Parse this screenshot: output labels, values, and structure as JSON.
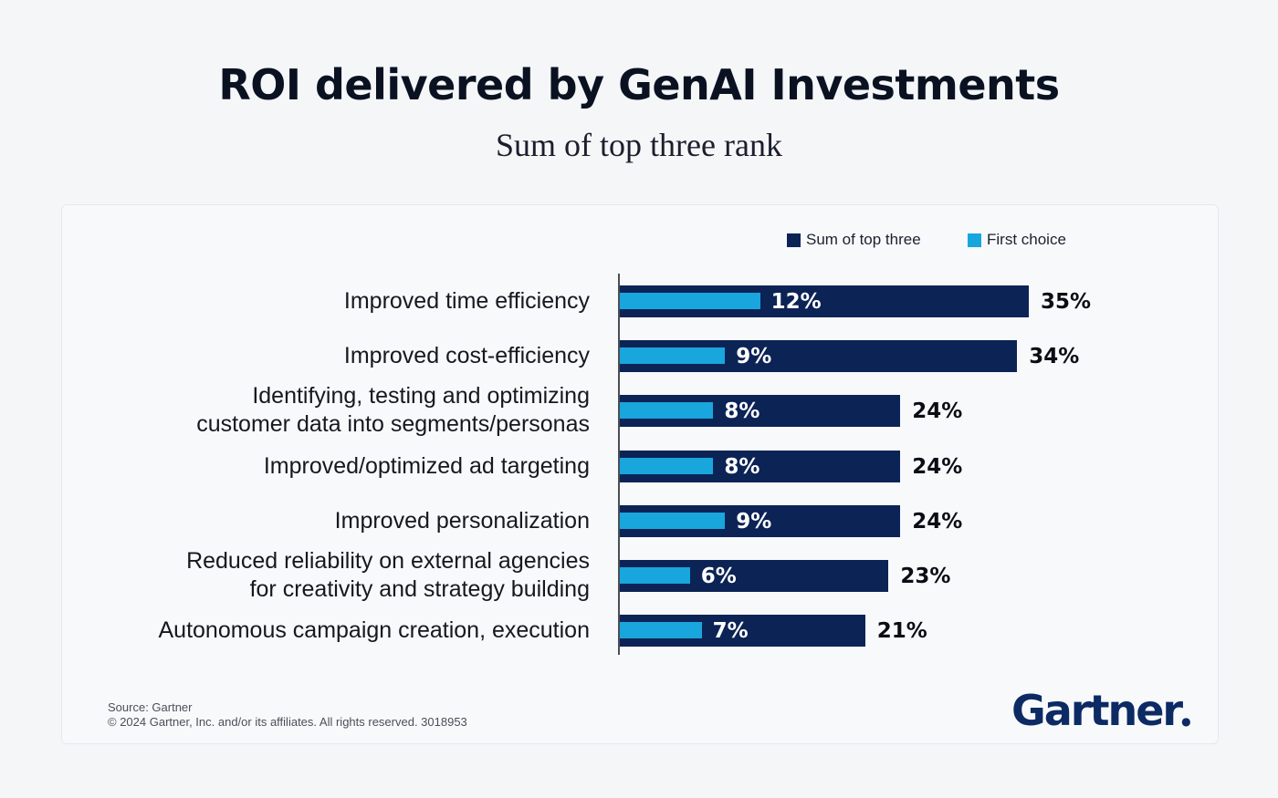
{
  "title": "ROI delivered by GenAI Investments",
  "subtitle": "Sum of top three rank",
  "legend": {
    "sum_label": "Sum of top three",
    "first_label": "First choice"
  },
  "colors": {
    "sum_of_top_three": "#0c2356",
    "first_choice": "#18a6dd"
  },
  "chart_data": {
    "type": "bar",
    "orientation": "horizontal",
    "categories": [
      "Improved time efficiency",
      "Improved cost-efficiency",
      "Identifying, testing and optimizing\ncustomer data into segments/personas",
      "Improved/optimized ad targeting",
      "Improved personalization",
      "Reduced reliability on external agencies\nfor creativity and strategy building",
      "Autonomous campaign creation, execution"
    ],
    "series": [
      {
        "name": "Sum of top three",
        "values": [
          35,
          34,
          24,
          24,
          24,
          23,
          21
        ],
        "labels": [
          "35%",
          "34%",
          "24%",
          "24%",
          "24%",
          "23%",
          "21%"
        ]
      },
      {
        "name": "First choice",
        "values": [
          12,
          9,
          8,
          8,
          9,
          6,
          7
        ],
        "labels": [
          "12%",
          "9%",
          "8%",
          "8%",
          "9%",
          "6%",
          "7%"
        ]
      }
    ],
    "unit": "%",
    "legend_position": "top-right",
    "grid": false
  },
  "footer": {
    "source": "Source: Gartner",
    "copyright": "© 2024 Gartner, Inc. and/or its affiliates. All rights reserved. 3018953"
  },
  "logo_text": "Gartner"
}
